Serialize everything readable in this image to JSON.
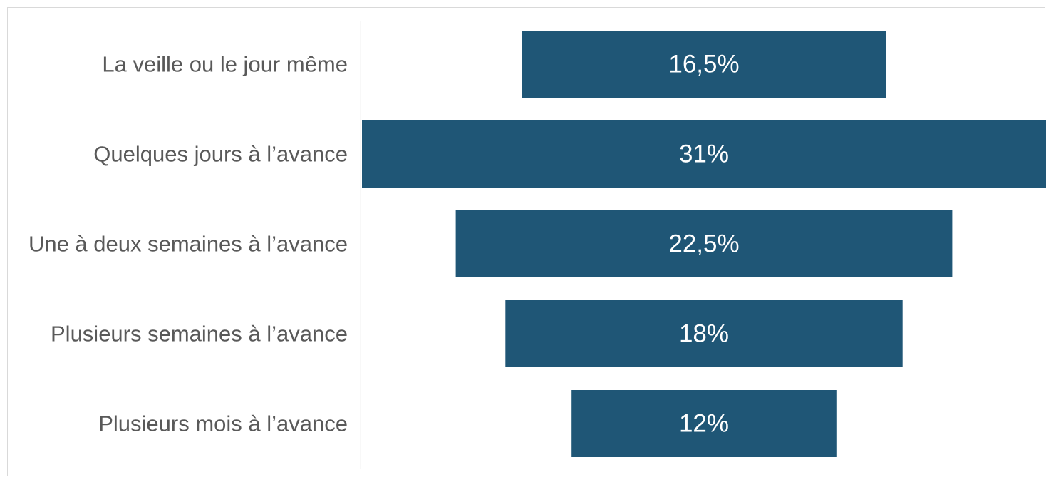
{
  "chart_data": {
    "type": "bar",
    "orientation": "horizontal",
    "layout": "funnel-centered",
    "categories": [
      "La veille ou le jour même",
      "Quelques jours à l’avance",
      "Une à deux semaines à l’avance",
      "Plusieurs semaines à l’avance",
      "Plusieurs mois à l’avance"
    ],
    "values": [
      16.5,
      31,
      22.5,
      18,
      12
    ],
    "value_labels": [
      "16,5%",
      "31%",
      "22,5%",
      "18%",
      "12%"
    ],
    "unit": "%",
    "xlim": [
      0,
      31
    ],
    "grid": false,
    "legend": "none",
    "colors": {
      "bar": "#1F5676",
      "category_text": "#595959",
      "value_text": "#FFFFFF",
      "frame": "#D9D9D9"
    }
  }
}
